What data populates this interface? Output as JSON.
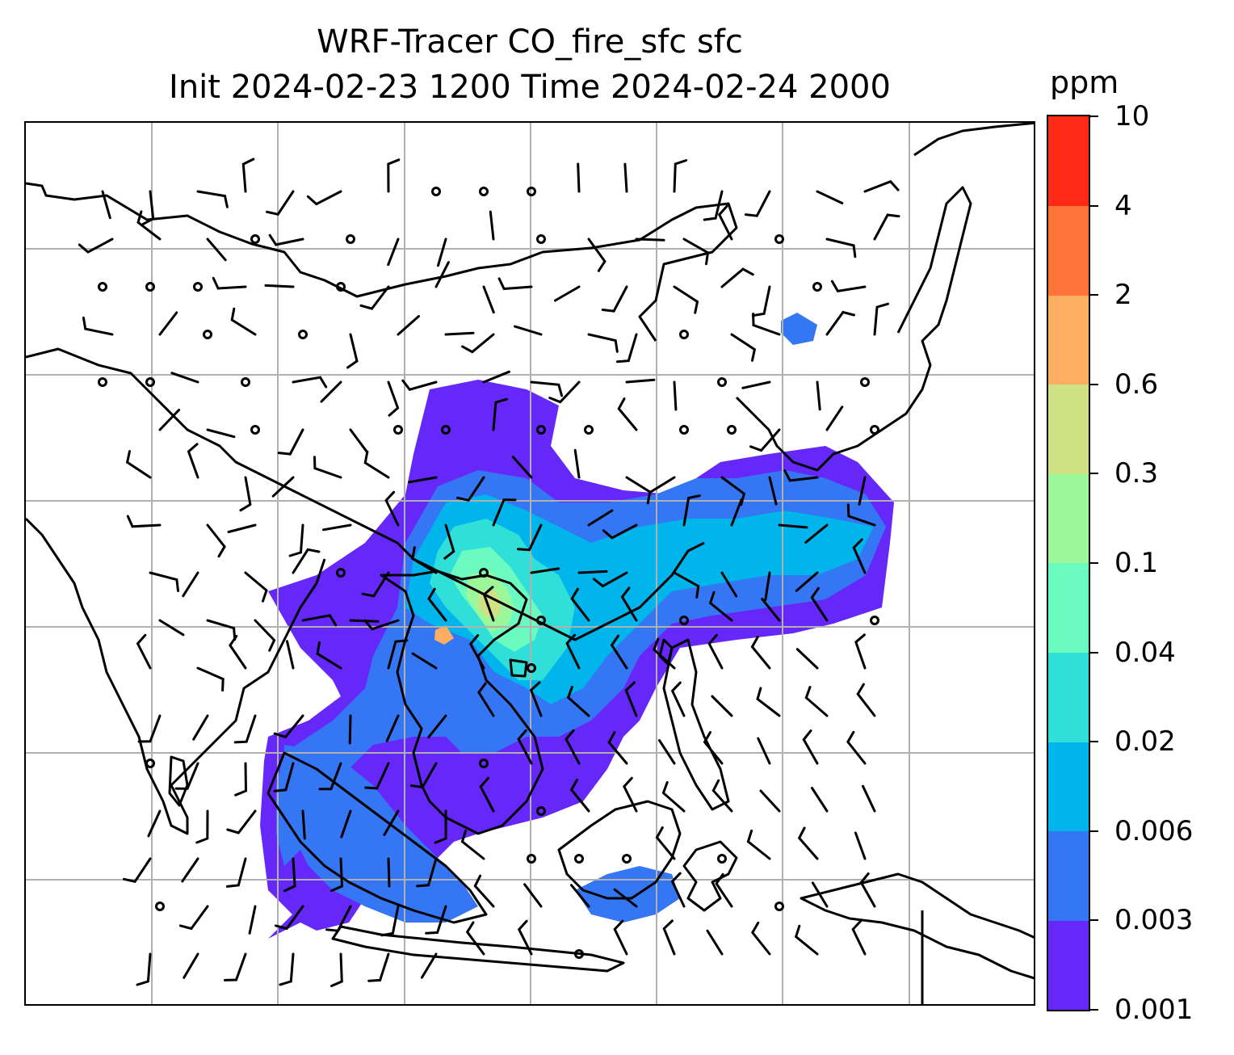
{
  "title": {
    "line1": "WRF-Tracer CO_fire_sfc sfc",
    "line2": "Init 2024-02-23 1200 Time 2024-02-24 2000"
  },
  "colorbar": {
    "unit": "ppm",
    "tick_labels": [
      "0.001",
      "0.003",
      "0.006",
      "0.02",
      "0.04",
      "0.1",
      "0.3",
      "0.6",
      "2",
      "4",
      "10"
    ],
    "colors": [
      "#6528f9",
      "#3476f3",
      "#00b4ec",
      "#2fdfd8",
      "#6bfabf",
      "#9bf79a",
      "#d0e283",
      "#fdae61",
      "#ff7439",
      "#ff2a15"
    ]
  },
  "map": {
    "gridlines": true,
    "grid_color": "#b0b0b0",
    "coastline_color": "#000000",
    "wind_barbs": true,
    "calm_wind_markers": true
  }
}
